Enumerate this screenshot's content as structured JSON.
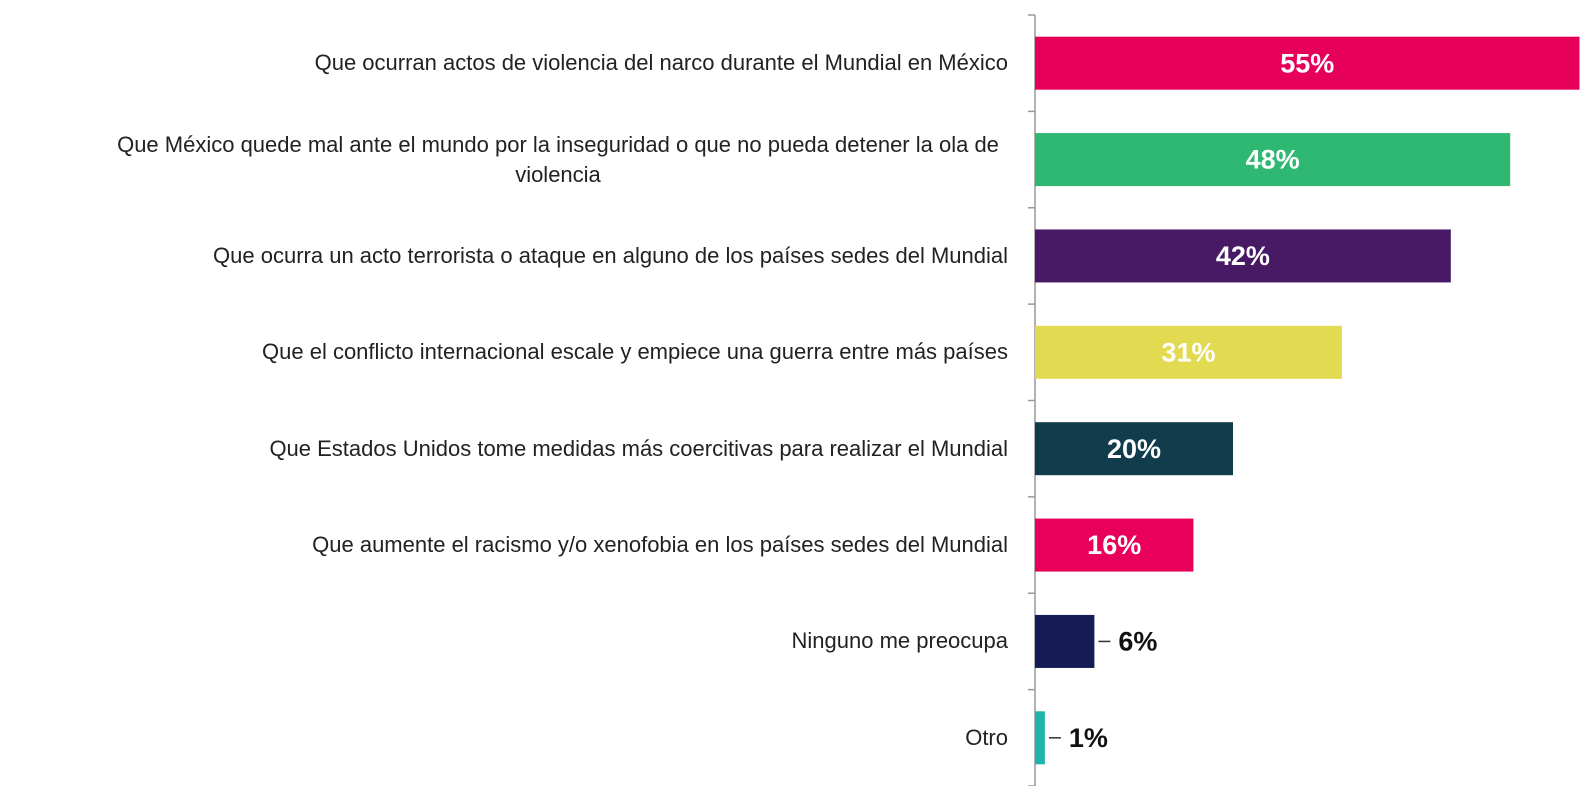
{
  "chart_data": {
    "type": "bar",
    "orientation": "horizontal",
    "categories": [
      "Que ocurran actos de violencia del narco durante el Mundial en México",
      "Que México quede mal ante el mundo por la inseguridad o que no pueda detener la ola de violencia",
      "Que ocurra un acto terrorista o ataque en alguno de los países sedes del Mundial",
      "Que el conflicto internacional escale y empiece una guerra entre más países",
      "Que Estados Unidos tome medidas más coercitivas para realizar el Mundial",
      "Que aumente el racismo y/o xenofobia en los países sedes del Mundial",
      "Ninguno me preocupa",
      "Otro"
    ],
    "values": [
      55,
      48,
      42,
      31,
      20,
      16,
      6,
      1
    ],
    "value_labels": [
      "55%",
      "48%",
      "42%",
      "31%",
      "20%",
      "16%",
      "6%",
      "1%"
    ],
    "colors": [
      "#e6005a",
      "#2eb872",
      "#481a66",
      "#e2da50",
      "#113c4b",
      "#e8005a",
      "#151b55",
      "#22b3ad"
    ]
  }
}
